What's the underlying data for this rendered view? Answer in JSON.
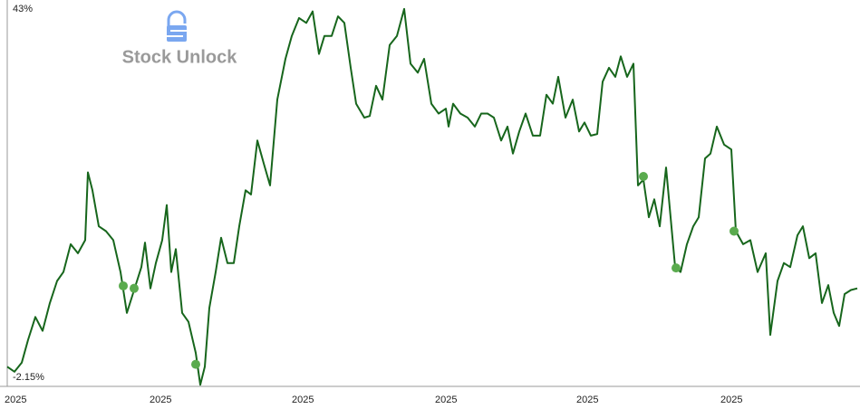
{
  "chart_data": {
    "type": "line",
    "watermark": "Stock Unlock",
    "x": [
      0,
      8,
      16,
      23,
      31,
      39,
      47,
      55,
      62,
      70,
      78,
      86,
      89,
      94,
      101,
      109,
      117,
      125,
      132,
      140,
      148,
      152,
      158,
      164,
      171,
      176,
      181,
      186,
      193,
      200,
      208,
      213,
      218,
      223,
      230,
      236,
      243,
      250,
      256,
      263,
      269,
      276,
      283,
      290,
      298,
      307,
      314,
      322,
      330,
      337,
      344,
      350,
      358,
      365,
      372,
      379,
      385,
      394,
      400,
      407,
      414,
      422,
      430,
      438,
      445,
      453,
      460,
      468,
      476,
      484,
      487,
      492,
      500,
      508,
      516,
      523,
      530,
      537,
      545,
      552,
      558,
      565,
      572,
      580,
      588,
      595,
      602,
      608,
      616,
      624,
      631,
      637,
      644,
      651,
      657,
      664,
      671,
      677,
      684,
      691,
      696,
      702,
      708,
      714,
      720,
      727,
      732,
      737,
      743,
      750,
      757,
      763,
      770,
      776,
      783,
      791,
      799,
      804,
      812,
      820,
      828,
      837,
      842,
      850,
      857,
      864,
      872,
      878,
      885,
      892,
      899,
      906,
      912,
      918,
      924,
      931,
      938
    ],
    "series": [
      {
        "color": "#17661c",
        "values": [
          -0.8,
          -1.4,
          -0.3,
          2.5,
          5.3,
          3.6,
          7.0,
          9.7,
          10.8,
          14.2,
          13.1,
          14.7,
          23.0,
          20.8,
          16.4,
          15.8,
          14.7,
          10.8,
          5.8,
          8.6,
          11.4,
          14.4,
          8.8,
          11.9,
          14.7,
          19.0,
          10.8,
          13.6,
          5.8,
          4.7,
          0.9,
          -3.0,
          -0.8,
          6.4,
          10.8,
          15.0,
          11.9,
          11.9,
          16.4,
          20.8,
          20.3,
          26.9,
          24.1,
          21.4,
          31.9,
          36.9,
          39.7,
          41.9,
          41.3,
          42.7,
          37.5,
          39.7,
          39.7,
          42.1,
          41.3,
          35.8,
          31.4,
          29.7,
          29.9,
          33.6,
          31.9,
          38.6,
          39.7,
          43.0,
          36.3,
          35.2,
          36.9,
          31.4,
          30.2,
          30.8,
          28.6,
          31.4,
          30.2,
          29.7,
          28.6,
          30.2,
          30.2,
          29.7,
          26.9,
          28.6,
          25.3,
          28.0,
          30.2,
          27.5,
          27.5,
          32.5,
          31.4,
          34.7,
          29.7,
          31.9,
          28.0,
          29.1,
          27.5,
          27.7,
          34.1,
          35.8,
          34.7,
          37.2,
          34.7,
          36.3,
          21.4,
          22.1,
          17.5,
          19.7,
          16.4,
          23.6,
          17.5,
          11.4,
          10.8,
          14.2,
          16.4,
          17.5,
          24.7,
          25.3,
          28.6,
          26.4,
          25.8,
          15.8,
          14.2,
          14.7,
          10.8,
          13.1,
          3.1,
          9.7,
          11.9,
          11.4,
          15.3,
          16.4,
          12.5,
          13.1,
          7.0,
          9.2,
          5.8,
          4.2,
          8.1,
          8.6,
          8.8
        ]
      }
    ],
    "markers": {
      "color": "#5aab4e",
      "x": [
        128,
        140,
        208,
        702,
        738,
        802
      ],
      "values": [
        9.1,
        8.8,
        -0.5,
        22.5,
        11.3,
        15.8
      ]
    },
    "xlim": [
      -3,
      938
    ],
    "xticks": [
      {
        "value": -3,
        "label": "2025"
      },
      {
        "value": 157,
        "label": "2025"
      },
      {
        "value": 314,
        "label": "2025"
      },
      {
        "value": 472,
        "label": "2025"
      },
      {
        "value": 628,
        "label": "2025"
      },
      {
        "value": 787,
        "label": "2025"
      }
    ],
    "ylim": [
      -3.2,
      44.1
    ],
    "yticks": [
      {
        "value": 43,
        "label": "43%"
      },
      {
        "value": -2.15,
        "label": "-2.15%"
      }
    ],
    "grid": false
  }
}
